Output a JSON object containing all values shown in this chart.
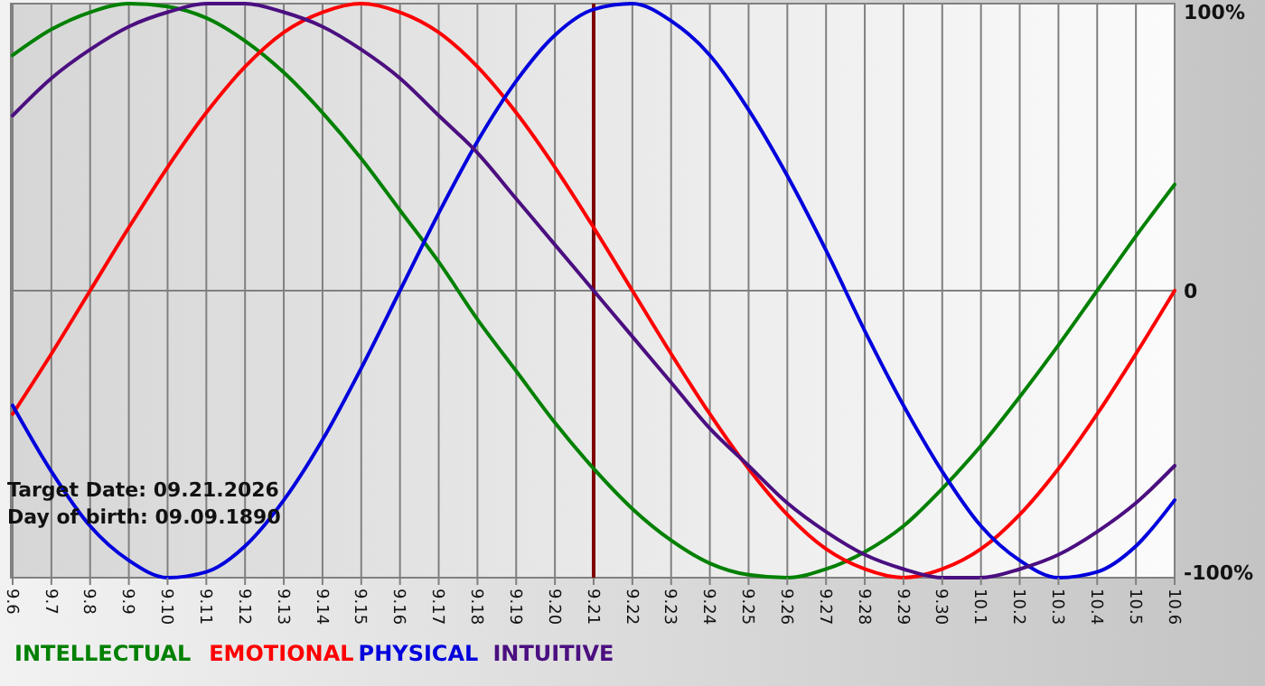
{
  "chart_data": {
    "type": "line",
    "categories": [
      "9.6",
      "9.7",
      "9.8",
      "9.9",
      "9.10",
      "9.11",
      "9.12",
      "9.13",
      "9.14",
      "9.15",
      "9.16",
      "9.17",
      "9.18",
      "9.19",
      "9.20",
      "9.21",
      "9.22",
      "9.23",
      "9.24",
      "9.25",
      "9.26",
      "9.27",
      "9.28",
      "9.29",
      "9.30",
      "10.1",
      "10.2",
      "10.3",
      "10.4",
      "10.5",
      "10.6"
    ],
    "series": [
      {
        "name": "INTELLECTUAL",
        "color": "#008000",
        "values": [
          82,
          91,
          97,
          100,
          99,
          95,
          87,
          76,
          62,
          46,
          28,
          10,
          -10,
          -28,
          -46,
          -62,
          -76,
          -87,
          -95,
          -99,
          -100,
          -97,
          -91,
          -82,
          -69,
          -54,
          -37,
          -19,
          0,
          19,
          37
        ]
      },
      {
        "name": "EMOTIONAL",
        "color": "#ff0000",
        "values": [
          -43,
          -22,
          0,
          22,
          43,
          62,
          78,
          90,
          97,
          100,
          97,
          90,
          78,
          62,
          43,
          22,
          0,
          -22,
          -43,
          -62,
          -78,
          -90,
          -97,
          -100,
          -97,
          -90,
          -78,
          -62,
          -43,
          -22,
          0
        ]
      },
      {
        "name": "PHYSICAL",
        "color": "#0000dd",
        "values": [
          -40,
          -63,
          -82,
          -94,
          -100,
          -98,
          -89,
          -73,
          -52,
          -27,
          0,
          27,
          52,
          73,
          89,
          98,
          100,
          94,
          82,
          63,
          40,
          14,
          -14,
          -40,
          -63,
          -82,
          -94,
          -100,
          -98,
          -89,
          -73
        ]
      },
      {
        "name": "INTUITIVE",
        "color": "#4b0f80",
        "values": [
          61,
          74,
          84,
          92,
          97,
          100,
          100,
          97,
          92,
          84,
          74,
          61,
          48,
          32,
          16,
          0,
          -16,
          -32,
          -48,
          -61,
          -74,
          -84,
          -92,
          -97,
          -100,
          -100,
          -97,
          -92,
          -84,
          -74,
          -61
        ]
      }
    ],
    "ylim": [
      -100,
      100
    ],
    "yticks": [
      {
        "value": 100,
        "label": "100%"
      },
      {
        "value": 0,
        "label": "0"
      },
      {
        "value": -100,
        "label": "-100%"
      }
    ],
    "grid": true,
    "legend": "bottom",
    "ref_lines": [
      {
        "axis": "x",
        "value": "9.21",
        "color": "#800000"
      }
    ],
    "annotations": [
      "Target Date: 09.21.2026",
      "Day of birth: 09.09.1890"
    ]
  }
}
